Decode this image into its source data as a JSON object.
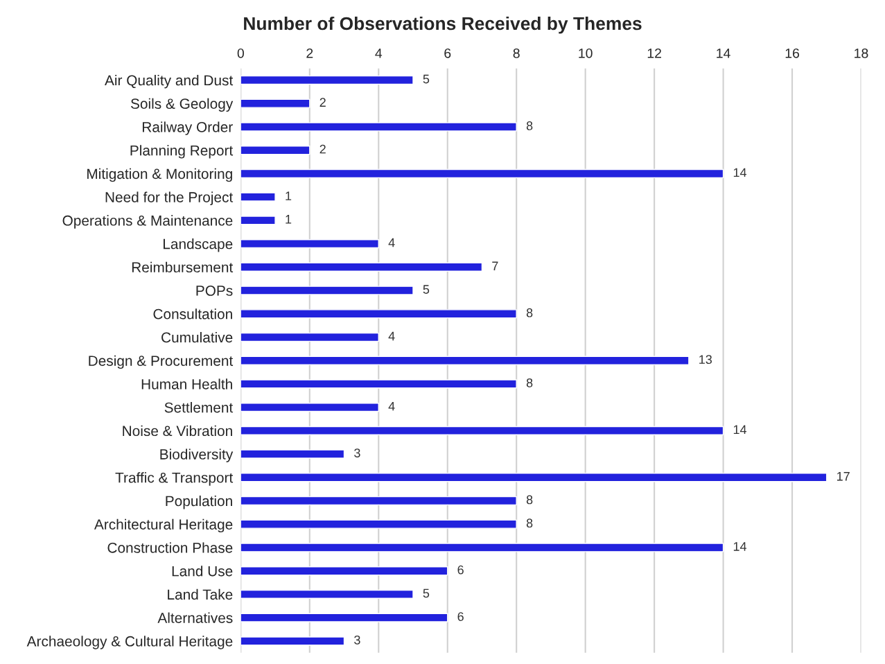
{
  "chart_data": {
    "type": "bar",
    "orientation": "horizontal",
    "title": "Number of Observations Received by Themes",
    "categories": [
      "Air Quality and Dust",
      "Soils & Geology",
      "Railway Order",
      "Planning Report",
      "Mitigation & Monitoring",
      "Need for the Project",
      "Operations & Maintenance",
      "Landscape",
      "Reimbursement",
      "POPs",
      "Consultation",
      "Cumulative",
      "Design & Procurement",
      "Human Health",
      "Settlement",
      "Noise & Vibration",
      "Biodiversity",
      "Traffic & Transport",
      "Population",
      "Architectural Heritage",
      "Construction Phase",
      "Land Use",
      "Land Take",
      "Alternatives",
      "Archaeology & Cultural Heritage"
    ],
    "values": [
      5,
      2,
      8,
      2,
      14,
      1,
      1,
      4,
      7,
      5,
      8,
      4,
      13,
      8,
      4,
      14,
      3,
      17,
      8,
      8,
      14,
      6,
      5,
      6,
      3
    ],
    "color": "#2222dd",
    "xlim": [
      0,
      18
    ],
    "xticks": [
      0,
      2,
      4,
      6,
      8,
      10,
      12,
      14,
      16,
      18
    ],
    "grid": "x",
    "data_labels": true,
    "legend": false
  }
}
